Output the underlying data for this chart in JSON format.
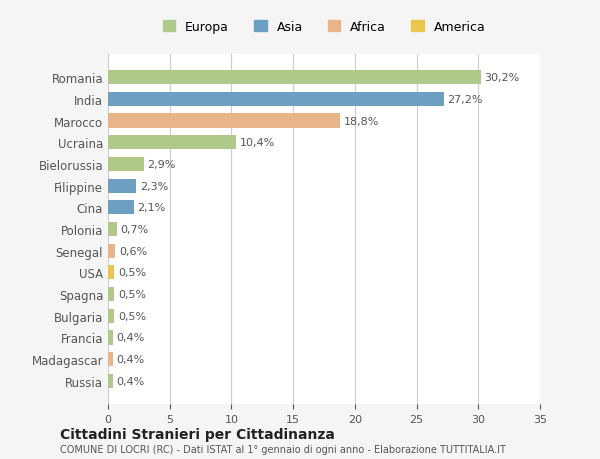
{
  "categories": [
    "Romania",
    "India",
    "Marocco",
    "Ucraina",
    "Bielorussia",
    "Filippine",
    "Cina",
    "Polonia",
    "Senegal",
    "USA",
    "Spagna",
    "Bulgaria",
    "Francia",
    "Madagascar",
    "Russia"
  ],
  "values": [
    30.2,
    27.2,
    18.8,
    10.4,
    2.9,
    2.3,
    2.1,
    0.7,
    0.6,
    0.5,
    0.5,
    0.5,
    0.4,
    0.4,
    0.4
  ],
  "labels": [
    "30,2%",
    "27,2%",
    "18,8%",
    "10,4%",
    "2,9%",
    "2,3%",
    "2,1%",
    "0,7%",
    "0,6%",
    "0,5%",
    "0,5%",
    "0,5%",
    "0,4%",
    "0,4%",
    "0,4%"
  ],
  "colors": [
    "#aec98a",
    "#6c9fc2",
    "#e8b48a",
    "#aec98a",
    "#aec98a",
    "#6c9fc2",
    "#6c9fc2",
    "#aec98a",
    "#e8b48a",
    "#e8c84a",
    "#aec98a",
    "#aec98a",
    "#aec98a",
    "#e8b48a",
    "#aec98a"
  ],
  "legend_labels": [
    "Europa",
    "Asia",
    "Africa",
    "America"
  ],
  "legend_colors": [
    "#aec98a",
    "#6c9fc2",
    "#e8b48a",
    "#e8c84a"
  ],
  "xlim": [
    0,
    35
  ],
  "xticks": [
    0,
    5,
    10,
    15,
    20,
    25,
    30,
    35
  ],
  "title": "Cittadini Stranieri per Cittadinanza",
  "subtitle": "COMUNE DI LOCRI (RC) - Dati ISTAT al 1° gennaio di ogni anno - Elaborazione TUTTITALIA.IT",
  "bg_color": "#f5f5f5",
  "bar_bg_color": "#ffffff",
  "grid_color": "#cccccc"
}
